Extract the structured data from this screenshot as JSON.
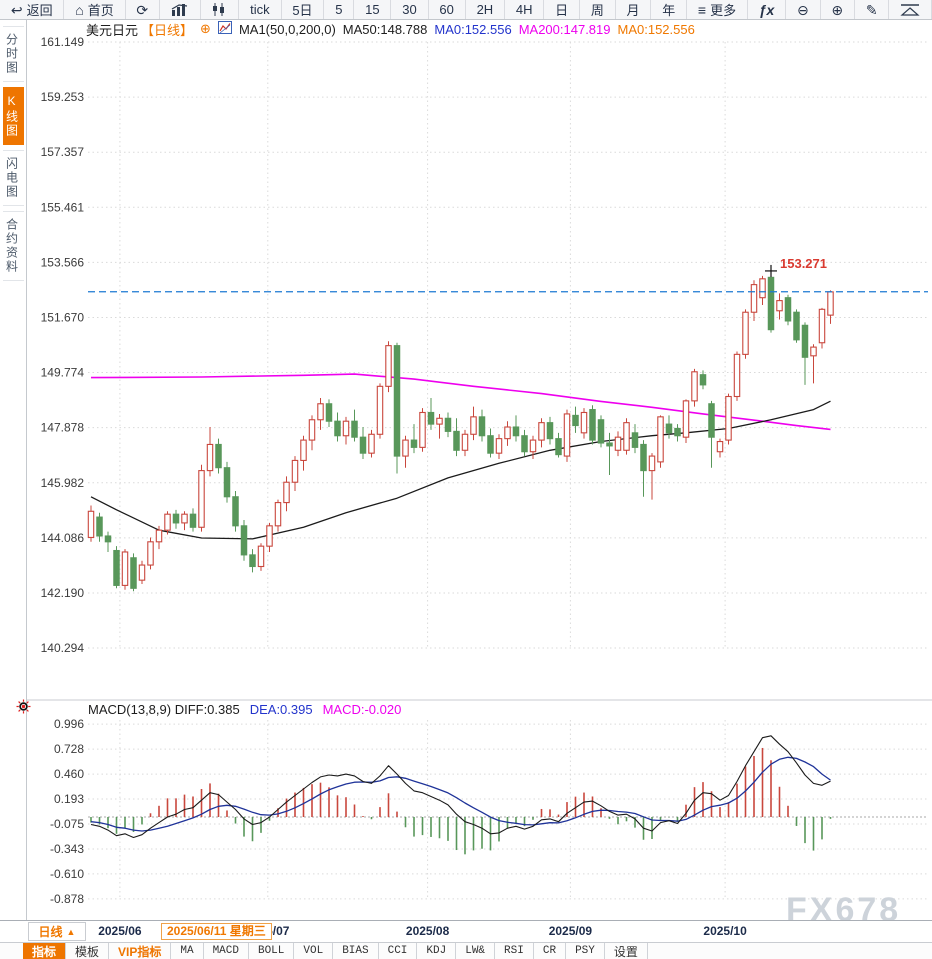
{
  "toolbar": {
    "items": [
      {
        "name": "back-button",
        "icon": "back",
        "label": "返回"
      },
      {
        "name": "home-button",
        "icon": "home",
        "label": "首页"
      },
      {
        "name": "refresh-button",
        "icon": "refresh",
        "label": ""
      },
      {
        "name": "bar-chart-view-button",
        "icon": "bars",
        "label": ""
      },
      {
        "name": "candlestick-view-button",
        "icon": "candles",
        "label": ""
      },
      {
        "name": "period-tick-button",
        "icon": "",
        "label": "tick"
      },
      {
        "name": "period-5day-button",
        "icon": "",
        "label": "5日"
      },
      {
        "name": "period-5min-button",
        "icon": "",
        "label": "5"
      },
      {
        "name": "period-15min-button",
        "icon": "",
        "label": "15"
      },
      {
        "name": "period-30min-button",
        "icon": "",
        "label": "30"
      },
      {
        "name": "period-60min-button",
        "icon": "",
        "label": "60"
      },
      {
        "name": "period-2h-button",
        "icon": "",
        "label": "2H"
      },
      {
        "name": "period-4h-button",
        "icon": "",
        "label": "4H"
      },
      {
        "name": "period-day-button",
        "icon": "",
        "label": "日"
      },
      {
        "name": "period-week-button",
        "icon": "",
        "label": "周"
      },
      {
        "name": "period-month-button",
        "icon": "",
        "label": "月"
      },
      {
        "name": "period-year-button",
        "icon": "",
        "label": "年"
      },
      {
        "name": "more-button",
        "icon": "menu",
        "label": "更多"
      },
      {
        "name": "formula-button",
        "icon": "fx",
        "label": ""
      },
      {
        "name": "zoom-out-button",
        "icon": "zoomout",
        "label": ""
      },
      {
        "name": "zoom-in-button",
        "icon": "zoomin",
        "label": ""
      },
      {
        "name": "draw-pencil-button",
        "icon": "pencil",
        "label": ""
      },
      {
        "name": "trendline-button",
        "icon": "trendline",
        "label": ""
      }
    ]
  },
  "sidebar": {
    "items": [
      {
        "name": "sidebar-item-timeshare",
        "label": "分时图",
        "selected": false
      },
      {
        "name": "sidebar-item-kline",
        "label": "K线图",
        "selected": true
      },
      {
        "name": "sidebar-item-lightning",
        "label": "闪电图",
        "selected": false
      },
      {
        "name": "sidebar-item-contract-info",
        "label": "合约资料",
        "selected": false
      }
    ]
  },
  "chart_header": {
    "symbol": "美元日元",
    "period": "【日线】",
    "plus": "⊕",
    "ma_settings": "MA1(50,0,200,0)",
    "ma50": "MA50:148.788",
    "ma0_blue": "MA0:152.556",
    "ma200": "MA200:147.819",
    "ma0_orange": "MA0:152.556"
  },
  "macd_header": {
    "title": "MACD(13,8,9)  DIFF:0.385",
    "dea": "DEA:0.395",
    "macd": "MACD:-0.020"
  },
  "date_row": {
    "period_button": "日线",
    "triangle": "▲",
    "crosshair_date": "2025/06/11 星期三",
    "watermark": "FX678"
  },
  "bottom_toolbar": {
    "tabs": [
      {
        "label": "指标",
        "selected": true,
        "vip": false,
        "mono": false
      },
      {
        "label": "模板",
        "selected": false,
        "vip": false,
        "mono": false
      },
      {
        "label": "VIP指标",
        "selected": false,
        "vip": true,
        "mono": false
      },
      {
        "label": "MA",
        "selected": false,
        "vip": false,
        "mono": true
      },
      {
        "label": "MACD",
        "selected": false,
        "vip": false,
        "mono": true
      },
      {
        "label": "BOLL",
        "selected": false,
        "vip": false,
        "mono": true
      },
      {
        "label": "VOL",
        "selected": false,
        "vip": false,
        "mono": true
      },
      {
        "label": "BIAS",
        "selected": false,
        "vip": false,
        "mono": true
      },
      {
        "label": "CCI",
        "selected": false,
        "vip": false,
        "mono": true
      },
      {
        "label": "KDJ",
        "selected": false,
        "vip": false,
        "mono": true
      },
      {
        "label": "LW&",
        "selected": false,
        "vip": false,
        "mono": true
      },
      {
        "label": "RSI",
        "selected": false,
        "vip": false,
        "mono": true
      },
      {
        "label": "CR",
        "selected": false,
        "vip": false,
        "mono": true
      },
      {
        "label": "PSY",
        "selected": false,
        "vip": false,
        "mono": true
      },
      {
        "label": "设置",
        "selected": false,
        "vip": false,
        "mono": false
      }
    ]
  },
  "chart_data": {
    "type": "candlestick+macd",
    "title": "美元日元 日线 (USD/JPY Daily)",
    "price_axis": {
      "ticks": [
        161.149,
        159.253,
        157.357,
        155.461,
        153.566,
        151.67,
        149.774,
        147.878,
        145.982,
        144.086,
        142.19,
        140.294
      ]
    },
    "macd_axis": {
      "ticks": [
        0.996,
        0.728,
        0.46,
        0.193,
        -0.075,
        -0.343,
        -0.61,
        -0.878
      ]
    },
    "months": [
      {
        "label": "2025/06",
        "i": 3.4
      },
      {
        "label": "2025/07",
        "i": 20.8
      },
      {
        "label": "2025/08",
        "i": 39.6
      },
      {
        "label": "2025/09",
        "i": 56.4
      },
      {
        "label": "2025/10",
        "i": 74.6
      }
    ],
    "current_price": 152.556,
    "high_annotation": {
      "i": 80,
      "price": 153.271,
      "label": "153.271"
    },
    "colors": {
      "up": "#c9473d",
      "down": "#58975a",
      "ma200": "#ee00ee",
      "ma50": "#1b1b1b",
      "diff": "#1b1b1b",
      "dea": "#1f3399",
      "current_line": "#1d7ad2",
      "high_label": "#d93a30",
      "grid": "#dadada"
    },
    "candles": [
      [
        144.1,
        145.2,
        143.95,
        145.0
      ],
      [
        144.8,
        144.95,
        143.95,
        144.15
      ],
      [
        144.15,
        144.3,
        143.6,
        143.95
      ],
      [
        143.65,
        143.8,
        142.35,
        142.45
      ],
      [
        142.45,
        143.7,
        142.3,
        143.6
      ],
      [
        143.4,
        143.55,
        142.25,
        142.35
      ],
      [
        142.63,
        143.3,
        142.5,
        143.15
      ],
      [
        143.15,
        144.1,
        143.0,
        143.95
      ],
      [
        143.95,
        144.5,
        143.7,
        144.35
      ],
      [
        144.35,
        145.0,
        144.2,
        144.9
      ],
      [
        144.9,
        145.05,
        144.4,
        144.6
      ],
      [
        144.6,
        145.0,
        144.35,
        144.9
      ],
      [
        144.9,
        145.1,
        144.3,
        144.45
      ],
      [
        144.45,
        146.6,
        144.3,
        146.4
      ],
      [
        146.4,
        147.9,
        146.2,
        147.3
      ],
      [
        147.3,
        147.5,
        146.3,
        146.5
      ],
      [
        146.5,
        146.7,
        145.3,
        145.5
      ],
      [
        145.5,
        145.7,
        144.3,
        144.5
      ],
      [
        144.5,
        144.7,
        143.3,
        143.5
      ],
      [
        143.5,
        143.7,
        142.9,
        143.1
      ],
      [
        143.1,
        143.9,
        142.95,
        143.8
      ],
      [
        143.8,
        144.6,
        143.6,
        144.5
      ],
      [
        144.5,
        145.4,
        144.3,
        145.3
      ],
      [
        145.3,
        146.2,
        145.0,
        146.0
      ],
      [
        146.0,
        146.9,
        145.7,
        146.75
      ],
      [
        146.75,
        147.6,
        146.4,
        147.45
      ],
      [
        147.45,
        148.3,
        147.1,
        148.15
      ],
      [
        148.15,
        148.9,
        147.8,
        148.7
      ],
      [
        148.7,
        148.85,
        147.9,
        148.1
      ],
      [
        148.1,
        148.4,
        147.4,
        147.6
      ],
      [
        147.6,
        148.25,
        147.3,
        148.1
      ],
      [
        148.1,
        148.5,
        147.4,
        147.55
      ],
      [
        147.55,
        147.9,
        146.8,
        147.0
      ],
      [
        147.0,
        147.8,
        146.85,
        147.65
      ],
      [
        147.65,
        149.4,
        147.5,
        149.3
      ],
      [
        149.3,
        150.85,
        149.1,
        150.7
      ],
      [
        150.7,
        150.8,
        146.3,
        146.9
      ],
      [
        146.9,
        147.6,
        146.5,
        147.45
      ],
      [
        147.45,
        148.0,
        147.0,
        147.2
      ],
      [
        147.2,
        148.55,
        147.05,
        148.4
      ],
      [
        148.4,
        148.9,
        147.8,
        148.0
      ],
      [
        148.0,
        148.35,
        147.5,
        148.2
      ],
      [
        148.2,
        148.4,
        147.55,
        147.75
      ],
      [
        147.75,
        148.2,
        146.9,
        147.1
      ],
      [
        147.1,
        147.8,
        146.9,
        147.65
      ],
      [
        147.65,
        148.6,
        147.45,
        148.25
      ],
      [
        148.25,
        148.5,
        147.4,
        147.6
      ],
      [
        147.6,
        147.85,
        146.85,
        147.0
      ],
      [
        147.0,
        147.65,
        146.8,
        147.5
      ],
      [
        147.5,
        148.1,
        147.25,
        147.9
      ],
      [
        147.9,
        148.3,
        147.4,
        147.6
      ],
      [
        147.6,
        147.8,
        146.9,
        147.05
      ],
      [
        147.05,
        147.6,
        146.8,
        147.45
      ],
      [
        147.45,
        148.2,
        147.2,
        148.05
      ],
      [
        148.05,
        148.25,
        147.3,
        147.5
      ],
      [
        147.5,
        147.7,
        146.85,
        146.95
      ],
      [
        146.9,
        148.5,
        146.7,
        148.35
      ],
      [
        148.3,
        148.6,
        147.7,
        147.95
      ],
      [
        147.7,
        148.55,
        147.5,
        148.4
      ],
      [
        148.5,
        148.65,
        147.3,
        147.45
      ],
      [
        148.15,
        148.3,
        147.2,
        147.35
      ],
      [
        147.35,
        147.7,
        146.25,
        147.25
      ],
      [
        147.1,
        147.75,
        146.9,
        147.55
      ],
      [
        147.1,
        148.2,
        146.95,
        148.05
      ],
      [
        147.7,
        148.0,
        147.0,
        147.2
      ],
      [
        147.3,
        147.45,
        145.5,
        146.4
      ],
      [
        146.4,
        147.0,
        145.4,
        146.9
      ],
      [
        146.7,
        148.3,
        146.5,
        148.25
      ],
      [
        148.0,
        148.3,
        147.5,
        147.7
      ],
      [
        147.85,
        148.0,
        147.4,
        147.6
      ],
      [
        147.55,
        148.85,
        147.35,
        148.8
      ],
      [
        148.8,
        149.9,
        148.6,
        149.8
      ],
      [
        149.7,
        149.85,
        149.2,
        149.35
      ],
      [
        148.7,
        148.8,
        146.5,
        147.55
      ],
      [
        147.05,
        147.5,
        146.85,
        147.4
      ],
      [
        147.45,
        149.05,
        147.3,
        148.95
      ],
      [
        148.95,
        150.5,
        148.8,
        150.4
      ],
      [
        150.4,
        151.95,
        150.25,
        151.85
      ],
      [
        151.85,
        152.95,
        151.55,
        152.8
      ],
      [
        152.35,
        153.1,
        152.1,
        153.0
      ],
      [
        153.05,
        153.271,
        151.15,
        151.25
      ],
      [
        151.9,
        152.5,
        151.6,
        152.25
      ],
      [
        152.35,
        152.45,
        151.4,
        151.55
      ],
      [
        151.85,
        151.95,
        150.8,
        150.9
      ],
      [
        151.4,
        151.5,
        149.35,
        150.3
      ],
      [
        150.35,
        150.75,
        149.4,
        150.65
      ],
      [
        150.8,
        152.0,
        150.6,
        151.95
      ],
      [
        151.75,
        152.6,
        151.45,
        152.55
      ]
    ],
    "macd": {
      "diff": [
        -0.08,
        -0.1,
        -0.14,
        -0.2,
        -0.18,
        -0.22,
        -0.19,
        -0.12,
        -0.06,
        0.0,
        0.03,
        0.08,
        0.1,
        0.18,
        0.26,
        0.24,
        0.16,
        0.08,
        -0.02,
        -0.08,
        -0.06,
        0.0,
        0.08,
        0.16,
        0.23,
        0.3,
        0.37,
        0.43,
        0.45,
        0.44,
        0.46,
        0.44,
        0.38,
        0.36,
        0.44,
        0.55,
        0.46,
        0.36,
        0.28,
        0.26,
        0.22,
        0.18,
        0.13,
        0.03,
        -0.05,
        -0.08,
        -0.12,
        -0.18,
        -0.17,
        -0.12,
        -0.1,
        -0.13,
        -0.1,
        -0.03,
        -0.02,
        -0.05,
        0.04,
        0.1,
        0.16,
        0.17,
        0.12,
        0.06,
        0.02,
        0.03,
        -0.02,
        -0.12,
        -0.15,
        -0.06,
        -0.04,
        -0.07,
        0.04,
        0.18,
        0.26,
        0.25,
        0.18,
        0.23,
        0.38,
        0.55,
        0.7,
        0.85,
        0.87,
        0.78,
        0.7,
        0.58,
        0.45,
        0.36,
        0.34,
        0.385
      ],
      "dea": [
        -0.05,
        -0.06,
        -0.08,
        -0.11,
        -0.12,
        -0.14,
        -0.15,
        -0.14,
        -0.12,
        -0.1,
        -0.07,
        -0.04,
        -0.01,
        0.03,
        0.08,
        0.115,
        0.125,
        0.115,
        0.085,
        0.05,
        0.025,
        0.02,
        0.033,
        0.061,
        0.099,
        0.144,
        0.194,
        0.246,
        0.291,
        0.324,
        0.354,
        0.373,
        0.375,
        0.372,
        0.387,
        0.423,
        0.431,
        0.415,
        0.385,
        0.357,
        0.327,
        0.294,
        0.258,
        0.207,
        0.15,
        0.099,
        0.05,
        -0.001,
        -0.039,
        -0.057,
        -0.067,
        -0.081,
        -0.085,
        -0.073,
        -0.061,
        -0.063,
        -0.04,
        -0.009,
        0.029,
        0.06,
        0.073,
        0.07,
        0.059,
        0.053,
        0.037,
        0.002,
        -0.032,
        -0.038,
        -0.038,
        -0.045,
        -0.026,
        0.02,
        0.073,
        0.112,
        0.127,
        0.15,
        0.201,
        0.279,
        0.373,
        0.48,
        0.566,
        0.618,
        0.64,
        0.628,
        0.59,
        0.54,
        0.46,
        0.395
      ]
    },
    "ma50_points": [
      [
        0,
        145.5
      ],
      [
        3,
        145.05
      ],
      [
        8,
        144.35
      ],
      [
        13,
        144.08
      ],
      [
        19,
        144.05
      ],
      [
        25,
        144.45
      ],
      [
        30,
        144.95
      ],
      [
        36,
        145.45
      ],
      [
        42,
        146.15
      ],
      [
        48,
        146.65
      ],
      [
        54,
        147.1
      ],
      [
        60,
        147.4
      ],
      [
        66,
        147.6
      ],
      [
        70,
        147.7
      ],
      [
        75,
        147.85
      ],
      [
        80,
        148.15
      ],
      [
        85,
        148.5
      ],
      [
        87,
        148.788
      ]
    ],
    "ma200_points": [
      [
        0,
        149.6
      ],
      [
        13,
        149.62
      ],
      [
        25,
        149.68
      ],
      [
        31,
        149.72
      ],
      [
        38,
        149.55
      ],
      [
        45,
        149.3
      ],
      [
        53,
        149.05
      ],
      [
        60,
        148.78
      ],
      [
        66,
        148.58
      ],
      [
        72,
        148.35
      ],
      [
        79,
        148.1
      ],
      [
        83,
        147.95
      ],
      [
        87,
        147.819
      ]
    ]
  }
}
